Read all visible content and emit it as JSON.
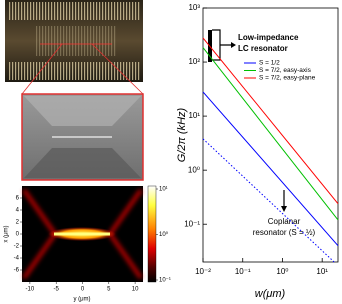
{
  "chart_data": [
    {
      "type": "line",
      "xlabel": "w(μm)",
      "ylabel": "G/2π (kHz)",
      "log_x": true,
      "log_y": true,
      "xlim": [
        0.01,
        25
      ],
      "ylim": [
        0.02,
        1000
      ],
      "xticks": [
        {
          "value": 0.01,
          "label": "10⁻²"
        },
        {
          "value": 0.1,
          "label": "10⁻¹"
        },
        {
          "value": 1,
          "label": "10⁰"
        },
        {
          "value": 10,
          "label": "10¹"
        }
      ],
      "yticks": [
        {
          "value": 0.1,
          "label": "10⁻¹"
        },
        {
          "value": 1,
          "label": "10⁰"
        },
        {
          "value": 10,
          "label": "10¹"
        },
        {
          "value": 100,
          "label": "10²"
        },
        {
          "value": 1000,
          "label": "10³"
        }
      ],
      "series": [
        {
          "name": "S = 1/2",
          "color": "#0000ff",
          "x": [
            0.01,
            25
          ],
          "values": [
            28,
            0.04
          ]
        },
        {
          "name": "S = 7/2, easy-axis",
          "color": "#00c000",
          "x": [
            0.01,
            25
          ],
          "values": [
            185,
            0.12
          ]
        },
        {
          "name": "S = 7/2, easy-plane",
          "color": "#ff0000",
          "x": [
            0.01,
            25
          ],
          "values": [
            280,
            0.24
          ]
        },
        {
          "color": "#0000ff",
          "linestyle": "dotted",
          "x": [
            0.01,
            20
          ],
          "values": [
            3.8,
            0.02
          ]
        }
      ],
      "annotations": [
        "Low-impedance",
        "LC resonator",
        "Coplanar",
        "resonator (S = ½)"
      ]
    },
    {
      "type": "heatmap",
      "xlabel": "y (μm)",
      "ylabel": "x (μm)",
      "xlim": [
        -11.5,
        11.5
      ],
      "ylim": [
        -8,
        8
      ],
      "xticks": [
        -10,
        -5,
        0,
        5,
        10
      ],
      "yticks": [
        6,
        4,
        2,
        0,
        -2,
        -4,
        -6
      ],
      "colorbar_lim": [
        0.1,
        10
      ],
      "colorbar_ticks": [
        {
          "value": 10,
          "label": "10¹"
        },
        {
          "value": 1,
          "label": "10⁰"
        },
        {
          "value": 0.1,
          "label": "10⁻¹"
        }
      ]
    }
  ]
}
